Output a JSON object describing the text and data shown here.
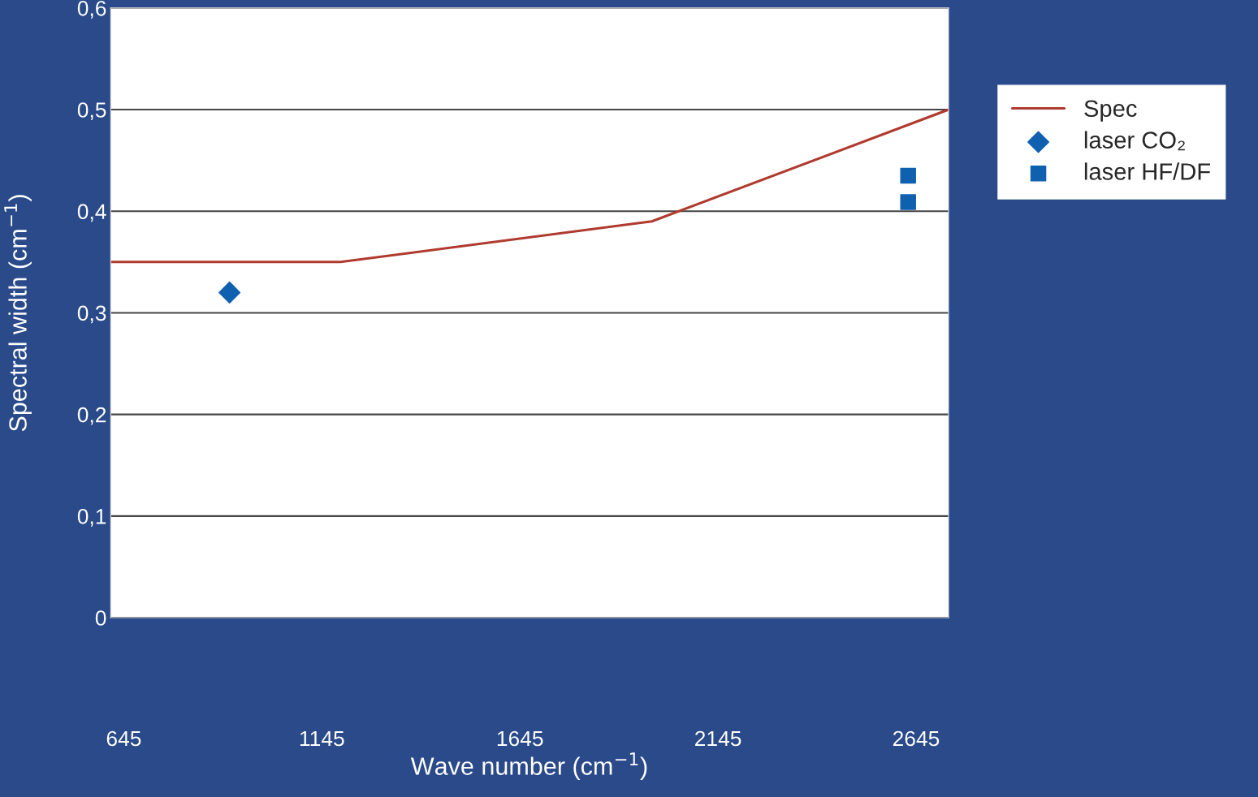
{
  "chart_data": {
    "type": "line",
    "xlabel": "Wave number (cm$^{−1}$)",
    "ylabel": "Spectral width (cm$^{−1}$)",
    "xlim": [
      612,
      2727
    ],
    "ylim": [
      0,
      0.6
    ],
    "xticks": [
      645,
      1145,
      1645,
      2145,
      2645
    ],
    "yticks": [
      {
        "value": 0,
        "label": "0"
      },
      {
        "value": 0.1,
        "label": "0,1"
      },
      {
        "value": 0.2,
        "label": "0,2"
      },
      {
        "value": 0.3,
        "label": "0,3"
      },
      {
        "value": 0.4,
        "label": "0,4"
      },
      {
        "value": 0.5,
        "label": "0,5"
      },
      {
        "value": 0.6,
        "label": "0,6"
      }
    ],
    "grid": "y",
    "legend": "right",
    "series": [
      {
        "name": "Spec",
        "color": "#b03a2e",
        "marker": "none",
        "x": [
          612,
          1192,
          1978,
          2727
        ],
        "values": [
          0.35,
          0.35,
          0.39,
          0.5
        ]
      },
      {
        "name": "laser CO₂",
        "type": "scatter",
        "color": "#1060b0",
        "marker": "diamond",
        "x": [
          912
        ],
        "values": [
          0.32
        ]
      },
      {
        "name": "laser HF/DF",
        "type": "scatter",
        "color": "#1060b0",
        "marker": "square",
        "x": [
          2625,
          2625
        ],
        "values": [
          0.435,
          0.409
        ]
      }
    ]
  }
}
